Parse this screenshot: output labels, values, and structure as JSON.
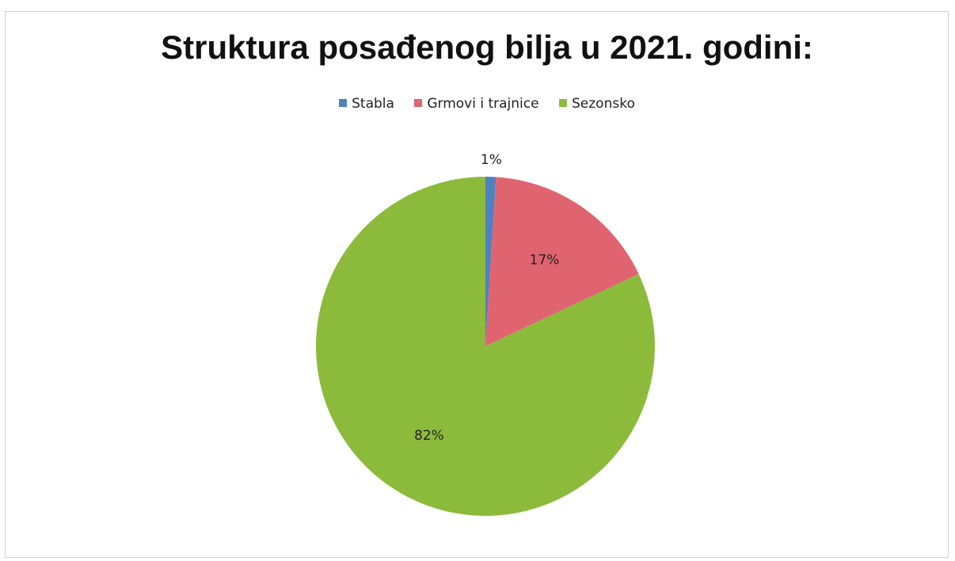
{
  "chart_data": {
    "type": "pie",
    "title": "Struktura posađenog bilja u 2021. godini:",
    "legend_position": "top",
    "categories": [
      "Stabla",
      "Grmovi i trajnice",
      "Sezonsko"
    ],
    "values": [
      1,
      17,
      82
    ],
    "data_labels": [
      "1%",
      "17%",
      "82%"
    ],
    "colors": [
      "#4f81bd",
      "#e06470",
      "#8cbb3c"
    ],
    "start_angle_deg": 0,
    "direction": "clockwise"
  }
}
